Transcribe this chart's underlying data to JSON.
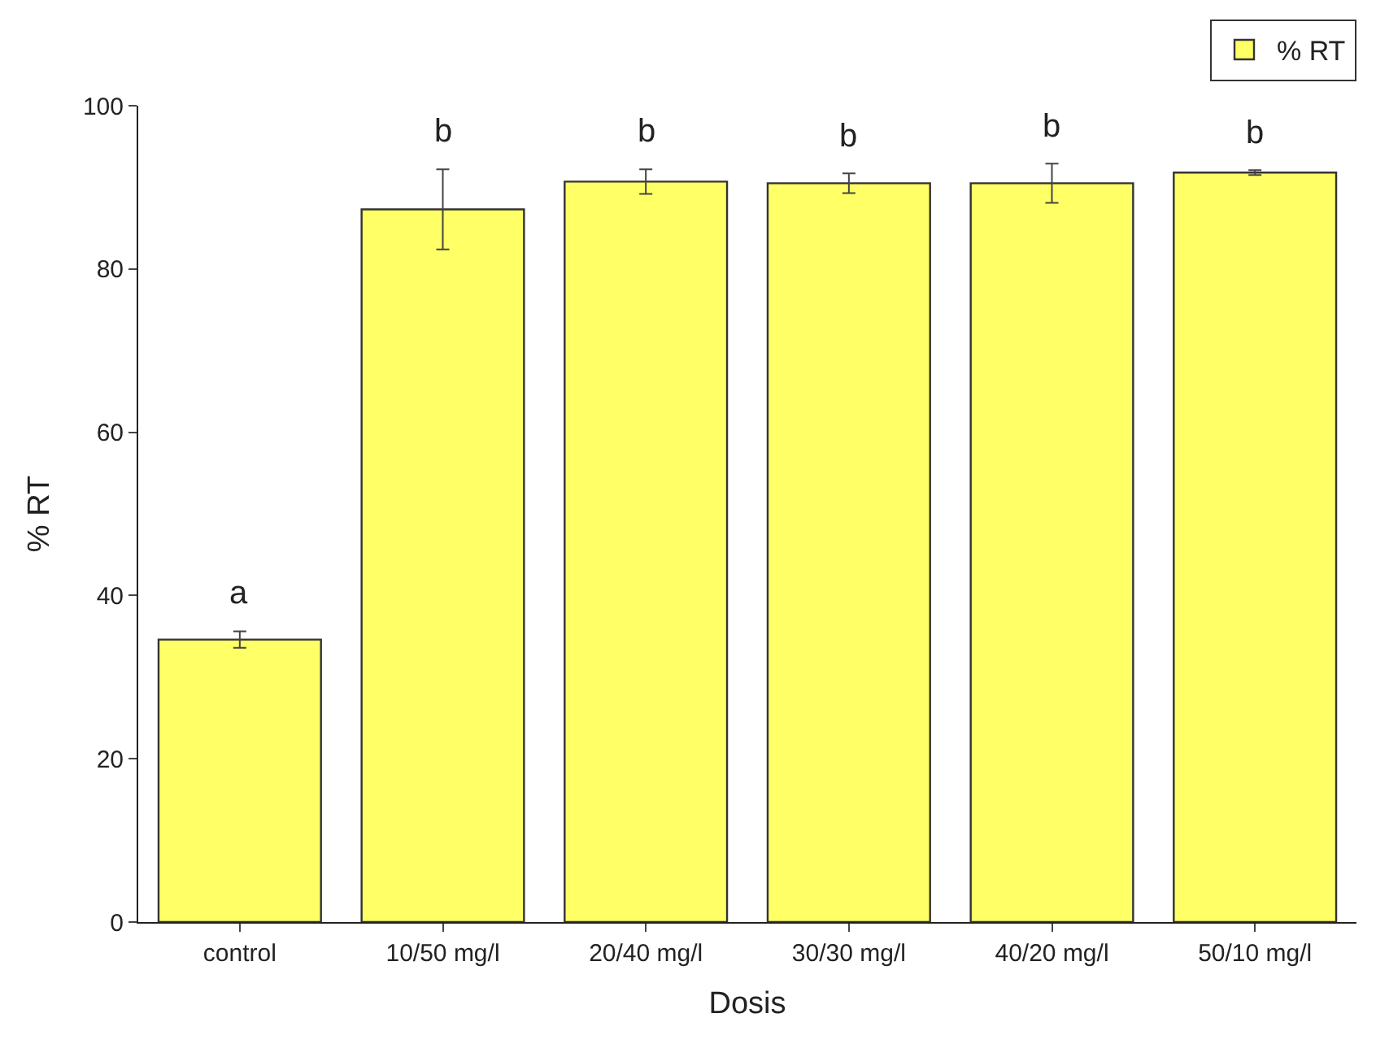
{
  "chart_data": {
    "type": "bar",
    "xlabel": "Dosis",
    "ylabel": "% RT",
    "categories": [
      "control",
      "10/50 mg/l",
      "20/40 mg/l",
      "30/30 mg/l",
      "40/20 mg/l",
      "50/10 mg/l"
    ],
    "series": [
      {
        "name": "% RT",
        "color": "#ffff66",
        "values": [
          34.6,
          87.3,
          90.7,
          90.5,
          90.5,
          91.8
        ],
        "errors": [
          1.0,
          4.9,
          1.5,
          1.2,
          2.4,
          0.3
        ]
      }
    ],
    "ylim": [
      0,
      100
    ],
    "yticks": [
      0,
      20,
      40,
      60,
      80,
      100
    ],
    "legend": "top right",
    "annotations": [
      "a",
      "b",
      "b",
      "b",
      "b",
      "b"
    ]
  }
}
